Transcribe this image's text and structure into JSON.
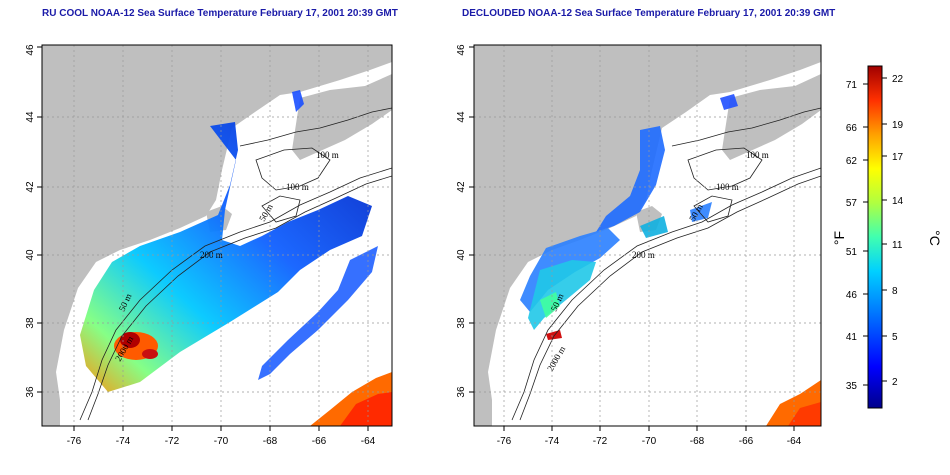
{
  "panels": [
    {
      "title": "RU COOL NOAA-12 Sea Surface Temperature February 17, 2001 20:39 GMT",
      "contour_labels": [
        "100 m",
        "100 m",
        "50 m",
        "200 m",
        "50 m",
        "2000 m"
      ]
    },
    {
      "title": "DECLOUDED NOAA-12 Sea Surface Temperature February 17, 2001 20:39 GMT",
      "contour_labels": [
        "100 m",
        "100 m",
        "50 m",
        "200 m",
        "50 m",
        "2000 m"
      ]
    }
  ],
  "x_ticks": [
    "-76",
    "-74",
    "-72",
    "-70",
    "-68",
    "-66",
    "-64"
  ],
  "y_ticks": [
    "36",
    "38",
    "40",
    "42",
    "44",
    "46"
  ],
  "colorbar": {
    "fahrenheit_unit": "°F",
    "celsius_unit": "°C",
    "fahrenheit_ticks": [
      "71",
      "66",
      "62",
      "57",
      "51",
      "46",
      "41",
      "35"
    ],
    "celsius_ticks": [
      "22",
      "19",
      "17",
      "14",
      "11",
      "8",
      "5",
      "2"
    ],
    "colors": [
      "#00008b",
      "#0000ff",
      "#0078ff",
      "#00d0ff",
      "#40ffb0",
      "#b0ff40",
      "#ffff00",
      "#ffa000",
      "#ff3000",
      "#a00000"
    ]
  },
  "colors": {
    "land": "#bfbfbf",
    "ocean": "#ffffff",
    "title": "#1a1aa8"
  }
}
